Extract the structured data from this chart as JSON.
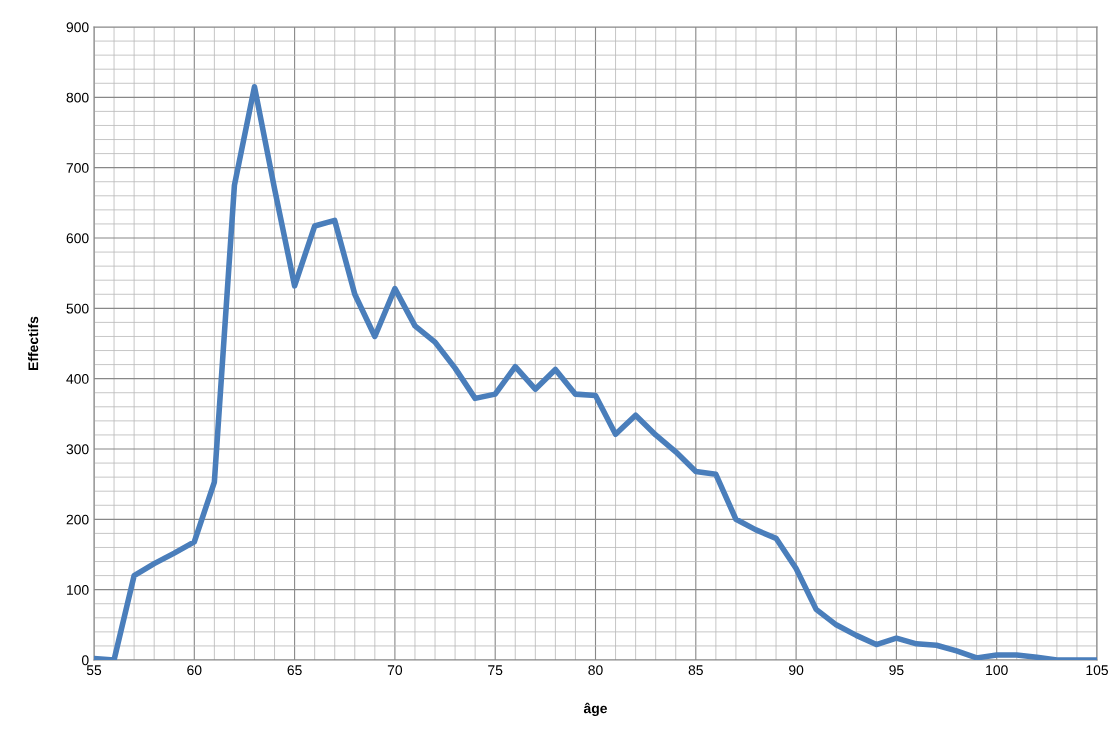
{
  "chart_data": {
    "type": "line",
    "xlabel": "âge",
    "ylabel": "Effectifs",
    "x": [
      55,
      56,
      57,
      58,
      59,
      60,
      61,
      62,
      63,
      64,
      65,
      66,
      67,
      68,
      69,
      70,
      71,
      72,
      73,
      74,
      75,
      76,
      77,
      78,
      79,
      80,
      81,
      82,
      83,
      84,
      85,
      86,
      87,
      88,
      89,
      90,
      91,
      92,
      93,
      94,
      95,
      96,
      97,
      98,
      99,
      100,
      101,
      102,
      103,
      104,
      105
    ],
    "series": [
      {
        "color": "#4a7ebb",
        "values": [
          2,
          0,
          120,
          137,
          152,
          168,
          253,
          675,
          815,
          670,
          532,
          617,
          625,
          520,
          460,
          528,
          475,
          452,
          415,
          372,
          378,
          417,
          385,
          413,
          378,
          376,
          321,
          348,
          320,
          296,
          268,
          264,
          200,
          185,
          173,
          130,
          72,
          50,
          35,
          22,
          31,
          23,
          21,
          13,
          3,
          7,
          7,
          4,
          0,
          0,
          0
        ]
      }
    ],
    "xlim": [
      55,
      105
    ],
    "xticks": [
      55,
      60,
      65,
      70,
      75,
      80,
      85,
      90,
      95,
      100,
      105
    ],
    "ylim": [
      0,
      900
    ],
    "yticks": [
      0,
      100,
      200,
      300,
      400,
      500,
      600,
      700,
      800,
      900
    ],
    "grid": true,
    "marker": "none",
    "line_style": "solid"
  }
}
